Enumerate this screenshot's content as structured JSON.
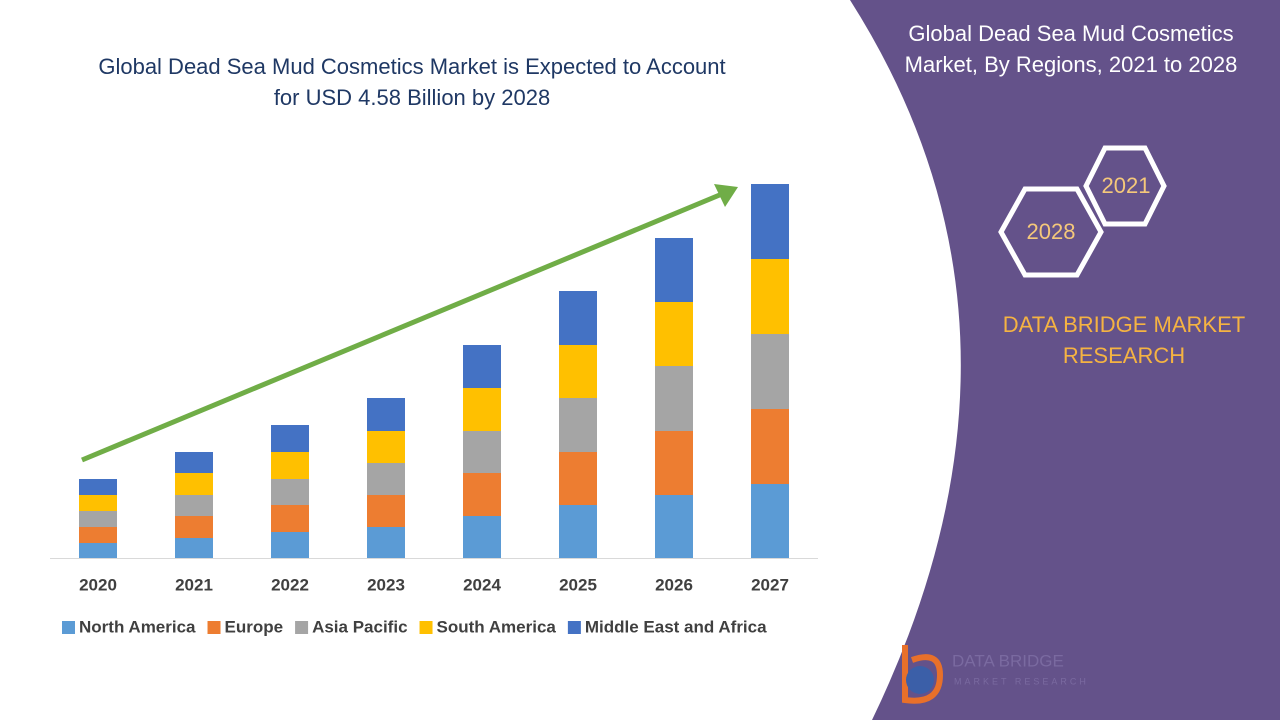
{
  "chart_data": {
    "type": "bar",
    "stacked": true,
    "title": [
      "Global Dead Sea Mud Cosmetics Market is Expected to Account",
      "for USD 4.58 Billion by 2028"
    ],
    "categories": [
      "2020",
      "2021",
      "2022",
      "2023",
      "2024",
      "2025",
      "2026",
      "2027"
    ],
    "series": [
      {
        "name": "North America",
        "color": "#5b9bd5",
        "values": [
          15,
          20,
          26,
          31,
          42,
          53,
          63,
          74
        ]
      },
      {
        "name": "Europe",
        "color": "#ed7d31",
        "values": [
          16,
          22,
          27,
          32,
          43,
          53,
          64,
          75
        ]
      },
      {
        "name": "Asia Pacific",
        "color": "#a5a5a5",
        "values": [
          16,
          21,
          26,
          32,
          42,
          54,
          65,
          75
        ]
      },
      {
        "name": "South America",
        "color": "#ffc000",
        "values": [
          16,
          22,
          27,
          32,
          43,
          53,
          64,
          75
        ]
      },
      {
        "name": "Middle East and Africa",
        "color": "#4472c4",
        "values": [
          16,
          21,
          27,
          33,
          43,
          54,
          64,
          75
        ]
      }
    ],
    "ylim": [
      0,
      400
    ],
    "legend": "bottom"
  },
  "panel": {
    "title": [
      "Global Dead Sea Mud Cosmetics",
      "Market, By Regions, 2021 to 2028"
    ],
    "hex_small": "2021",
    "hex_large": "2028",
    "brand": [
      "DATA BRIDGE MARKET",
      "RESEARCH"
    ],
    "logo": [
      "DATA BRIDGE",
      "MARKET RESEARCH"
    ]
  }
}
